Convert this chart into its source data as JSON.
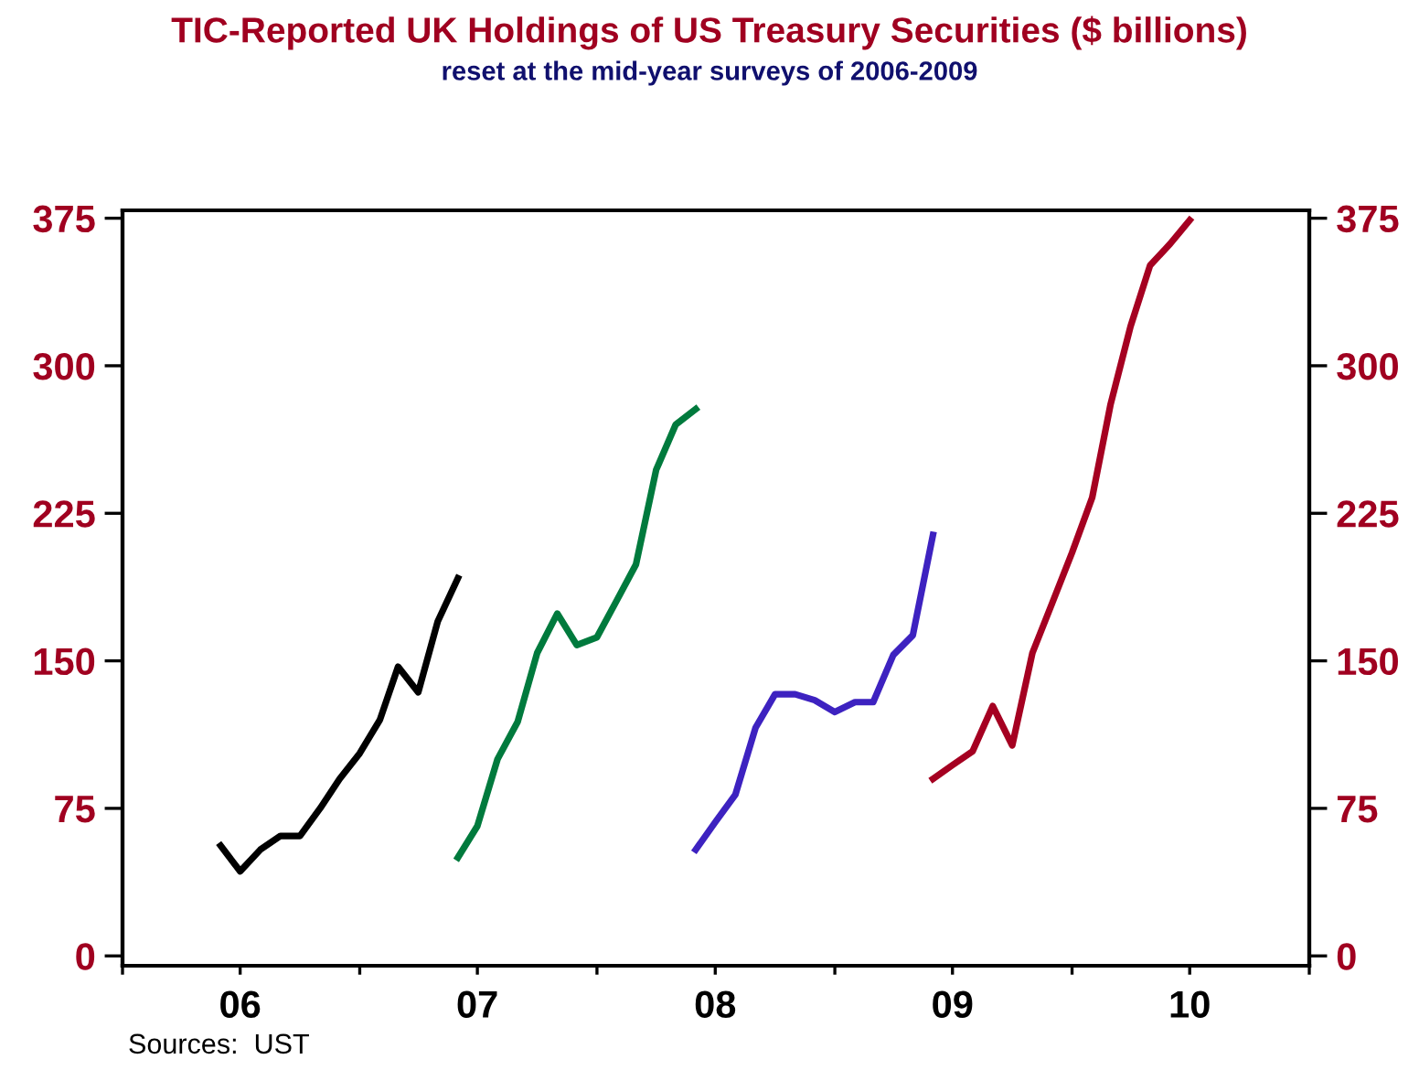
{
  "chart_data": {
    "type": "line",
    "title": "TIC-Reported UK Holdings of US Treasury Securities ($ billions)",
    "subtitle": "reset at the mid-year surveys of 2006-2009",
    "annotations": [
      "Sources:  UST"
    ],
    "series": [
      {
        "color": "#000000",
        "x": [
          "2006-06",
          "2006-07",
          "2006-08",
          "2006-09",
          "2006-10",
          "2006-11",
          "2006-12",
          "2007-01",
          "2007-02",
          "2007-03",
          "2007-04",
          "2007-05",
          "2007-06"
        ],
        "values": [
          56,
          43,
          54,
          61,
          61,
          75,
          90,
          103,
          120,
          147,
          134,
          170,
          192
        ]
      },
      {
        "color": "#007a3d",
        "x": [
          "2007-06",
          "2007-07",
          "2007-08",
          "2007-09",
          "2007-10",
          "2007-11",
          "2007-12",
          "2008-01",
          "2008-02",
          "2008-03",
          "2008-04",
          "2008-05",
          "2008-06"
        ],
        "values": [
          50,
          66,
          100,
          119,
          154,
          174,
          158,
          162,
          181,
          199,
          247,
          270,
          278
        ]
      },
      {
        "color": "#3d22c0",
        "x": [
          "2008-06",
          "2008-07",
          "2008-08",
          "2008-09",
          "2008-10",
          "2008-11",
          "2008-12",
          "2009-01",
          "2009-02",
          "2009-03",
          "2009-04",
          "2009-05",
          "2009-06"
        ],
        "values": [
          54,
          68,
          82,
          116,
          133,
          133,
          130,
          124,
          129,
          129,
          153,
          163,
          214
        ]
      },
      {
        "color": "#a50021",
        "x": [
          "2009-06",
          "2009-07",
          "2009-08",
          "2009-09",
          "2009-10",
          "2009-11",
          "2009-12",
          "2010-01",
          "2010-02",
          "2010-03",
          "2010-04",
          "2010-05",
          "2010-06",
          "2010-07"
        ],
        "values": [
          90,
          97,
          104,
          127,
          107,
          154,
          179,
          205,
          233,
          280,
          320,
          351,
          362,
          374
        ]
      }
    ],
    "xlim": [
      "2006-01-01",
      "2011-01-01"
    ],
    "xticks": [
      {
        "value": "2006-01-01",
        "label": null
      },
      {
        "value": "2006-07-01",
        "label": "06"
      },
      {
        "value": "2007-01-01",
        "label": null
      },
      {
        "value": "2007-07-01",
        "label": "07"
      },
      {
        "value": "2008-01-01",
        "label": null
      },
      {
        "value": "2008-07-01",
        "label": "08"
      },
      {
        "value": "2009-01-01",
        "label": null
      },
      {
        "value": "2009-07-01",
        "label": "09"
      },
      {
        "value": "2010-01-01",
        "label": null
      },
      {
        "value": "2010-07-01",
        "label": "10"
      },
      {
        "value": "2011-01-01",
        "label": null
      }
    ],
    "ylim": [
      -5,
      379
    ],
    "yticks": [
      0,
      75,
      150,
      225,
      300,
      375
    ],
    "y2lim": [
      -5,
      379
    ],
    "y2ticks": [
      0,
      75,
      150,
      225,
      300,
      375
    ],
    "grid": false,
    "legend": false,
    "marker": "none",
    "line_style": "solid"
  }
}
